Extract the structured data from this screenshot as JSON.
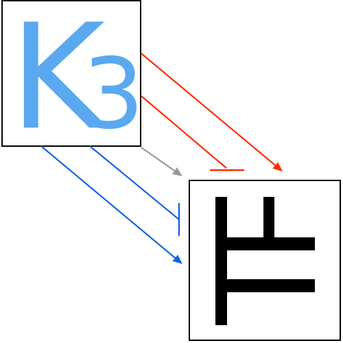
{
  "nodes": {
    "source": {
      "label": "K",
      "subscript": "3",
      "color": "#5aa9f0"
    },
    "target": {
      "glyph_icon": "tf-glyph",
      "color": "#000000"
    }
  },
  "edges": [
    {
      "id": "red-activation",
      "kind": "arrow",
      "color": "#ff2b00"
    },
    {
      "id": "red-inhibition",
      "kind": "bar",
      "color": "#ff2b00"
    },
    {
      "id": "gray-activation",
      "kind": "arrow",
      "color": "#999999"
    },
    {
      "id": "blue-inhibition",
      "kind": "bar",
      "color": "#1464e6"
    },
    {
      "id": "blue-activation",
      "kind": "arrow",
      "color": "#1464e6"
    }
  ]
}
